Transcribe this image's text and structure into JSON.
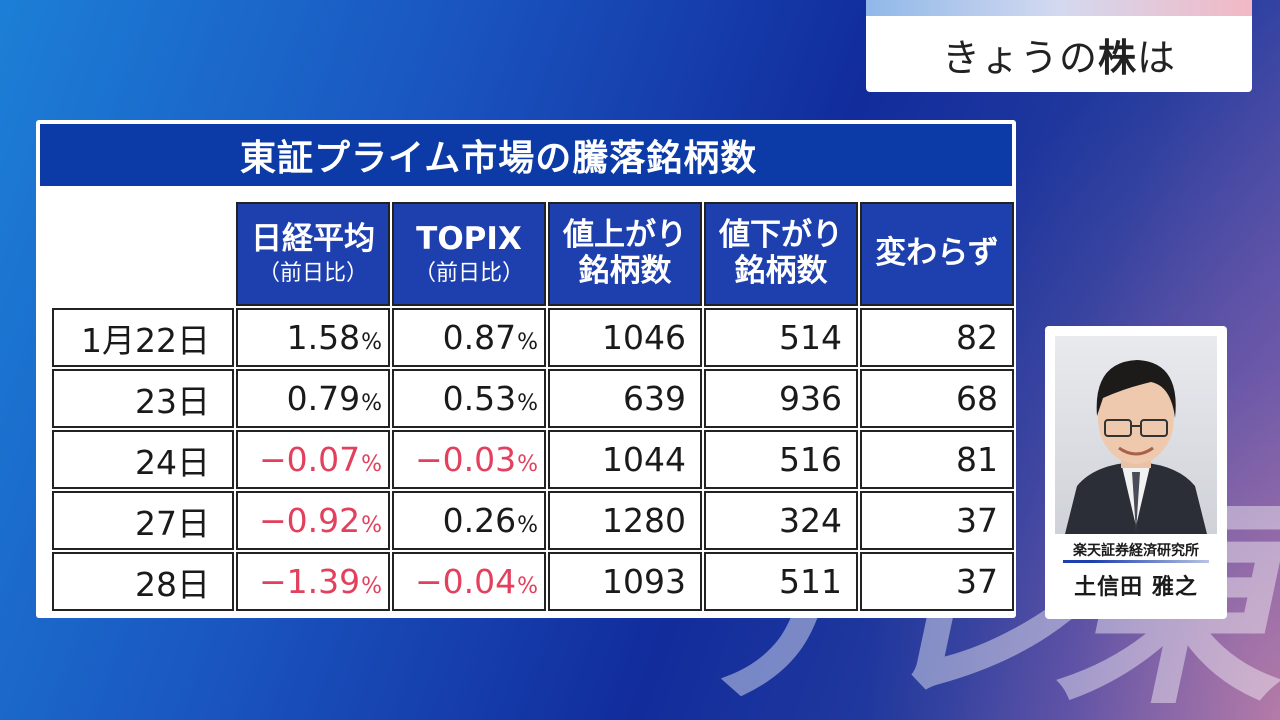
{
  "corner": {
    "title_normal": "きょうの",
    "title_bold": "株",
    "title_tail": "は"
  },
  "panel": {
    "title": "東証プライム市場の騰落銘柄数",
    "headers": [
      {
        "main": "日経平均",
        "sub": "（前日比）"
      },
      {
        "main": "TOPIX",
        "sub": "（前日比）"
      },
      {
        "main": "値上がり",
        "sub": "銘柄数"
      },
      {
        "main": "値下がり",
        "sub": "銘柄数"
      },
      {
        "main": "変わらず",
        "sub": ""
      }
    ],
    "rows": [
      {
        "date": "1月22日",
        "nikkei": "1.58",
        "topix": "0.87",
        "up": "1046",
        "down": "514",
        "flat": "82"
      },
      {
        "date": "23日",
        "nikkei": "0.79",
        "topix": "0.53",
        "up": "639",
        "down": "936",
        "flat": "68"
      },
      {
        "date": "24日",
        "nikkei": "−0.07",
        "topix": "−0.03",
        "up": "1044",
        "down": "516",
        "flat": "81"
      },
      {
        "date": "27日",
        "nikkei": "−0.92",
        "topix": "0.26",
        "up": "1280",
        "down": "324",
        "flat": "37"
      },
      {
        "date": "28日",
        "nikkei": "−1.39",
        "topix": "−0.04",
        "up": "1093",
        "down": "511",
        "flat": "37"
      }
    ],
    "pct_unit": "%"
  },
  "guest": {
    "org": "楽天証券経済研究所",
    "name": "土信田 雅之"
  },
  "watermark": [
    "テ",
    "レ",
    "東"
  ],
  "colors": {
    "header_blue": "#0c3aa6",
    "negative": "#e2405c"
  }
}
